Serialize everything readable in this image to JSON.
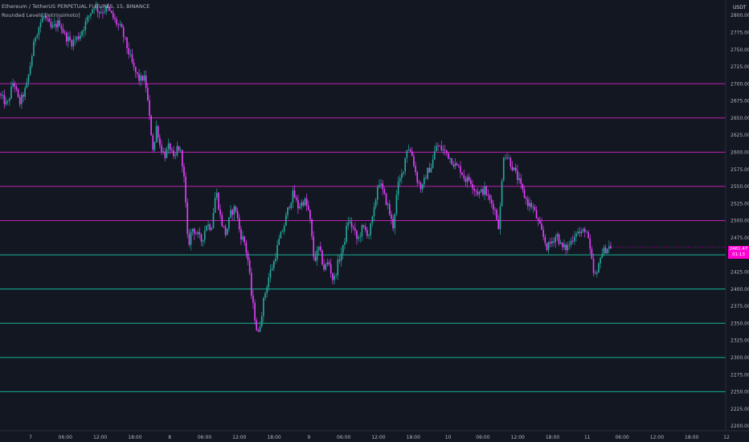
{
  "header": {
    "symbol_line": "Ethereum / TetherUS PERPETUAL FUTURES, 15, BINANCE",
    "indicator_line": "Rounded Levels [Intrinsimoto]"
  },
  "price_axis": {
    "currency": "USDT",
    "current_price": "2461.47",
    "countdown": "01:13"
  },
  "colors": {
    "background": "#131722",
    "up": "#26a69a",
    "down": "#e040fb",
    "level_above": "#c020b4",
    "level_below": "#16b396",
    "badge": "#ff00d4",
    "axis_text": "#b2b5be"
  },
  "chart_data": {
    "type": "candlestick",
    "title": "Ethereum / TetherUS PERPETUAL FUTURES, 15, BINANCE",
    "indicator": "Rounded Levels [Intrinsimoto]",
    "ylim": [
      2190,
      2830
    ],
    "y_ticks": [
      "2800.00",
      "2775.00",
      "2750.00",
      "2725.00",
      "2700.00",
      "2675.00",
      "2650.00",
      "2625.00",
      "2600.00",
      "2575.00",
      "2550.00",
      "2525.00",
      "2500.00",
      "2475.00",
      "2450.00",
      "2425.00",
      "2400.00",
      "2375.00",
      "2350.00",
      "2325.00",
      "2300.00",
      "2275.00",
      "2250.00",
      "2225.00",
      "2200.00"
    ],
    "x_ticks": [
      "7",
      "06:00",
      "12:00",
      "18:00",
      "8",
      "06:00",
      "12:00",
      "18:00",
      "9",
      "06:00",
      "12:00",
      "18:00",
      "10",
      "06:00",
      "12:00",
      "18:00",
      "11",
      "06:00",
      "12:00",
      "18:00",
      "12"
    ],
    "levels_above": [
      2500,
      2550,
      2600,
      2650,
      2700
    ],
    "levels_below": [
      2250,
      2300,
      2350,
      2400,
      2450
    ],
    "current_price": 2461.47,
    "price_path": [
      [
        0,
        2685
      ],
      [
        10,
        2668
      ],
      [
        18,
        2705
      ],
      [
        25,
        2670
      ],
      [
        34,
        2695
      ],
      [
        45,
        2770
      ],
      [
        55,
        2800
      ],
      [
        65,
        2780
      ],
      [
        75,
        2790
      ],
      [
        82,
        2770
      ],
      [
        90,
        2760
      ],
      [
        100,
        2770
      ],
      [
        108,
        2790
      ],
      [
        118,
        2815
      ],
      [
        125,
        2805
      ],
      [
        135,
        2810
      ],
      [
        145,
        2790
      ],
      [
        152,
        2780
      ],
      [
        160,
        2750
      ],
      [
        168,
        2720
      ],
      [
        175,
        2705
      ],
      [
        180,
        2710
      ],
      [
        183,
        2695
      ],
      [
        187,
        2650
      ],
      [
        192,
        2600
      ],
      [
        196,
        2640
      ],
      [
        200,
        2610
      ],
      [
        206,
        2595
      ],
      [
        212,
        2610
      ],
      [
        218,
        2585
      ],
      [
        222,
        2610
      ],
      [
        227,
        2595
      ],
      [
        231,
        2550
      ],
      [
        235,
        2460
      ],
      [
        240,
        2490
      ],
      [
        246,
        2480
      ],
      [
        252,
        2470
      ],
      [
        258,
        2495
      ],
      [
        264,
        2490
      ],
      [
        270,
        2545
      ],
      [
        276,
        2500
      ],
      [
        282,
        2480
      ],
      [
        288,
        2510
      ],
      [
        294,
        2520
      ],
      [
        300,
        2480
      ],
      [
        305,
        2470
      ],
      [
        310,
        2440
      ],
      [
        314,
        2390
      ],
      [
        318,
        2360
      ],
      [
        322,
        2330
      ],
      [
        326,
        2360
      ],
      [
        330,
        2390
      ],
      [
        336,
        2420
      ],
      [
        342,
        2440
      ],
      [
        348,
        2470
      ],
      [
        354,
        2490
      ],
      [
        360,
        2520
      ],
      [
        366,
        2540
      ],
      [
        372,
        2520
      ],
      [
        380,
        2530
      ],
      [
        386,
        2510
      ],
      [
        392,
        2440
      ],
      [
        398,
        2460
      ],
      [
        404,
        2430
      ],
      [
        410,
        2440
      ],
      [
        416,
        2410
      ],
      [
        422,
        2440
      ],
      [
        428,
        2460
      ],
      [
        434,
        2500
      ],
      [
        440,
        2490
      ],
      [
        446,
        2470
      ],
      [
        452,
        2490
      ],
      [
        460,
        2480
      ],
      [
        466,
        2510
      ],
      [
        472,
        2560
      ],
      [
        478,
        2540
      ],
      [
        484,
        2520
      ],
      [
        490,
        2490
      ],
      [
        496,
        2550
      ],
      [
        502,
        2570
      ],
      [
        508,
        2610
      ],
      [
        514,
        2595
      ],
      [
        520,
        2560
      ],
      [
        526,
        2545
      ],
      [
        532,
        2570
      ],
      [
        538,
        2580
      ],
      [
        544,
        2610
      ],
      [
        550,
        2605
      ],
      [
        556,
        2600
      ],
      [
        562,
        2590
      ],
      [
        568,
        2580
      ],
      [
        574,
        2575
      ],
      [
        580,
        2560
      ],
      [
        586,
        2560
      ],
      [
        592,
        2545
      ],
      [
        598,
        2540
      ],
      [
        604,
        2545
      ],
      [
        610,
        2530
      ],
      [
        616,
        2520
      ],
      [
        622,
        2490
      ],
      [
        628,
        2600
      ],
      [
        634,
        2590
      ],
      [
        640,
        2575
      ],
      [
        646,
        2560
      ],
      [
        652,
        2540
      ],
      [
        658,
        2525
      ],
      [
        664,
        2520
      ],
      [
        670,
        2500
      ],
      [
        676,
        2480
      ],
      [
        682,
        2460
      ],
      [
        688,
        2470
      ],
      [
        694,
        2480
      ],
      [
        700,
        2460
      ],
      [
        706,
        2460
      ],
      [
        712,
        2470
      ],
      [
        718,
        2485
      ],
      [
        724,
        2480
      ],
      [
        730,
        2490
      ],
      [
        736,
        2450
      ],
      [
        740,
        2420
      ],
      [
        744,
        2420
      ],
      [
        748,
        2450
      ],
      [
        752,
        2455
      ],
      [
        756,
        2460
      ],
      [
        760,
        2462
      ]
    ]
  }
}
